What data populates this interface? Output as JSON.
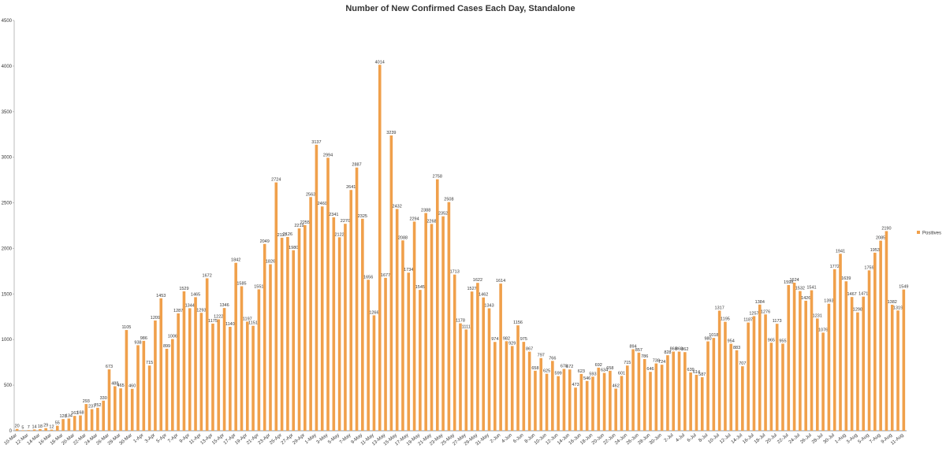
{
  "chart_data": {
    "type": "bar",
    "title": "Number of New Confirmed Cases Each Day, Standalone",
    "categories": [
      "10-Mar",
      null,
      "12-Mar",
      null,
      "14-Mar",
      null,
      "16-Mar",
      null,
      "18-Mar",
      null,
      "20-Mar",
      null,
      "22-Mar",
      null,
      "24-Mar",
      null,
      "26-Mar",
      null,
      "28-Mar",
      null,
      "30-Mar",
      null,
      "1-Apr",
      null,
      "3-Apr",
      null,
      "5-Apr",
      null,
      "7-Apr",
      null,
      "9-Apr",
      null,
      "11-Apr",
      null,
      "13-Apr",
      null,
      "15-Apr",
      null,
      "17-Apr",
      null,
      "19-Apr",
      null,
      "21-Apr",
      null,
      "23-Apr",
      null,
      "25-Apr",
      null,
      "27-Apr",
      null,
      "29-Apr",
      null,
      "1-May",
      null,
      "3-May",
      null,
      "5-May",
      null,
      "7-May",
      null,
      "9-May",
      null,
      "11-May",
      null,
      "13-May",
      null,
      "15-May",
      null,
      "17-May",
      null,
      "19-May",
      null,
      "21-May",
      null,
      "23-May",
      null,
      "25-May",
      null,
      "27-May",
      null,
      "29-May",
      null,
      "31-May",
      null,
      "2-Jun",
      null,
      "4-Jun",
      null,
      "6-Jun",
      null,
      "8-Jun",
      null,
      "10-Jun",
      null,
      "12-Jun",
      null,
      "14-Jun",
      null,
      "16-Jun",
      null,
      "18-Jun",
      null,
      "20-Jun",
      null,
      "22-Jun",
      null,
      "24-Jun",
      null,
      "26-Jun",
      null,
      "28-Jun",
      null,
      "30-Jun",
      null,
      "2-Jul",
      null,
      "4-Jul",
      null,
      "6-Jul",
      null,
      "8-Jul",
      null,
      "10-Jul",
      null,
      "12-Jul",
      null,
      "14-Jul",
      null,
      "16-Jul",
      null,
      "18-Jul",
      null,
      "20-Jul",
      null,
      "22-Jul",
      null,
      "24-Jul",
      null,
      "26-Jul",
      null,
      "28-Jul",
      null,
      "30-Jul",
      null,
      "1-Aug",
      null,
      "3-Aug",
      null,
      "5-Aug",
      null,
      "7-Aug",
      null,
      "9-Aug",
      null,
      "11-Aug"
    ],
    "series": [
      {
        "name": "Positives",
        "color": "#f0a04b",
        "values": [
          20,
          5,
          7,
          14,
          18,
          29,
          12,
          55,
          128,
          134,
          163,
          168,
          293,
          237,
          252,
          330,
          673,
          488,
          465,
          1105,
          460,
          938,
          986,
          715,
          1209,
          1453,
          899,
          1006,
          1287,
          1529,
          1344,
          1465,
          1293,
          1672,
          1175,
          1222,
          1346,
          1140,
          1842,
          1585,
          1197,
          1151,
          1551,
          2049,
          1826,
          2724,
          2117,
          2126,
          1980,
          2219,
          2255,
          2563,
          3137,
          2460,
          2994,
          2341,
          2122,
          2270,
          2641,
          2887,
          2325,
          1656,
          1266,
          4014,
          1677,
          3239,
          2432,
          2088,
          1734,
          2294,
          1545,
          2388,
          2268,
          2758,
          2352,
          2508,
          1713,
          1178,
          1111,
          1527,
          1622,
          1462,
          1343,
          974,
          1614,
          982,
          929,
          1156,
          975,
          867,
          658,
          797,
          625,
          766,
          599,
          678,
          672,
          473,
          623,
          546,
          593,
          692,
          634,
          658,
          462,
          601,
          715,
          894,
          857,
          786,
          646,
          738,
          724,
          828,
          868,
          868,
          862,
          639,
          614,
          587,
          980,
          1018,
          1317,
          1195,
          954,
          883,
          707,
          1187,
          1257,
          1384,
          1276,
          965,
          1173,
          955,
          1598,
          1624,
          1532,
          1426,
          1541,
          1231,
          1076,
          1393,
          1772,
          1941,
          1639,
          1467,
          1298,
          1471,
          1759,
          1953,
          2085,
          2190,
          1382,
          1319,
          1549
        ]
      }
    ],
    "ylim": [
      0,
      4500
    ],
    "yticks": [
      0,
      500,
      1000,
      1500,
      2000,
      2500,
      3000,
      3500,
      4000,
      4500
    ],
    "legend": "right",
    "grid": false
  }
}
